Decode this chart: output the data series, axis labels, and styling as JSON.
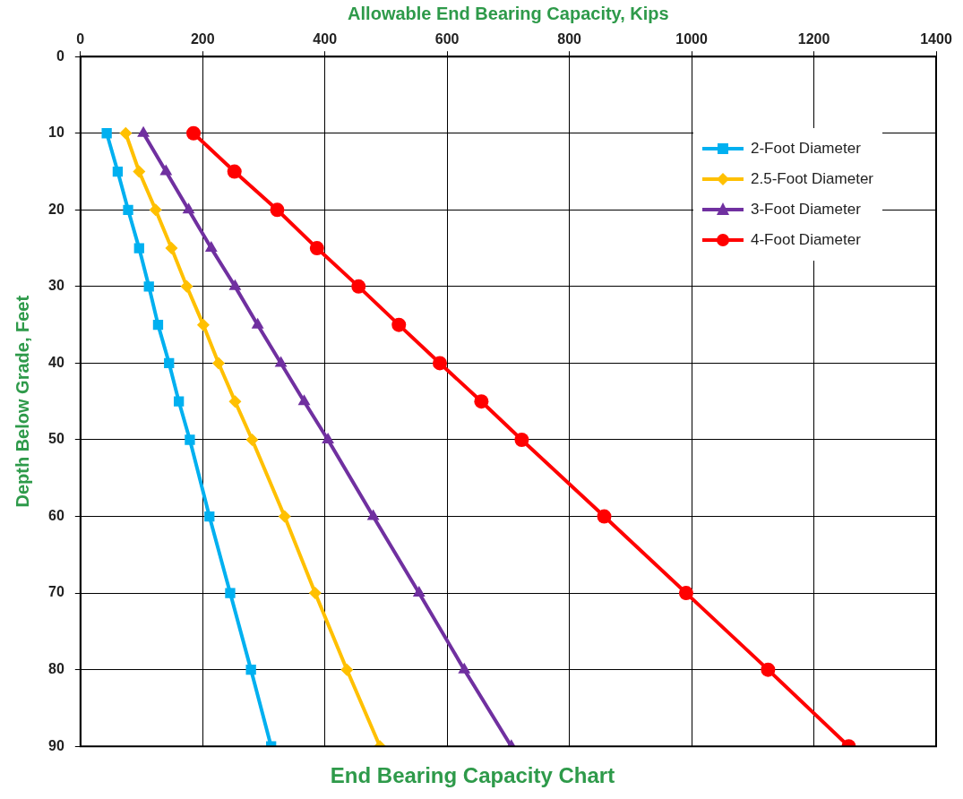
{
  "chart_data": {
    "type": "line",
    "title": "End Bearing Capacity Chart",
    "xlabel": "Allowable End Bearing Capacity, Kips",
    "ylabel": "Depth Below Grade, Feet",
    "xlim": [
      0,
      1400
    ],
    "xticks": [
      0,
      200,
      400,
      600,
      800,
      1000,
      1200,
      1400
    ],
    "ylim": [
      90,
      0
    ],
    "yticks": [
      0,
      10,
      20,
      30,
      40,
      50,
      60,
      70,
      80,
      90
    ],
    "grid": true,
    "legend": "top right",
    "line_style": "solid",
    "series": [
      {
        "name": "2-Foot Diameter",
        "color": "#00b0f0",
        "marker": "square",
        "x": [
          43,
          61,
          78,
          96,
          112,
          127,
          145,
          161,
          179,
          211,
          245,
          279,
          312
        ],
        "values": [
          10,
          15,
          20,
          25,
          30,
          35,
          40,
          45,
          50,
          60,
          70,
          80,
          90
        ]
      },
      {
        "name": "2.5-Foot Diameter",
        "color": "#ffc000",
        "marker": "diamond",
        "x": [
          74,
          96,
          123,
          149,
          174,
          201,
          226,
          253,
          281,
          334,
          384,
          436,
          490
        ],
        "values": [
          10,
          15,
          20,
          25,
          30,
          35,
          40,
          45,
          50,
          60,
          70,
          80,
          90
        ]
      },
      {
        "name": "3-Foot Diameter",
        "color": "#7030a0",
        "marker": "triangle",
        "x": [
          103,
          140,
          177,
          214,
          253,
          290,
          328,
          366,
          405,
          479,
          554,
          628,
          705
        ],
        "values": [
          10,
          15,
          20,
          25,
          30,
          35,
          40,
          45,
          50,
          60,
          70,
          80,
          90
        ]
      },
      {
        "name": "4-Foot Diameter",
        "color": "#ff0000",
        "marker": "circle",
        "x": [
          185,
          252,
          322,
          387,
          455,
          521,
          588,
          656,
          722,
          857,
          991,
          1125,
          1257
        ],
        "values": [
          10,
          15,
          20,
          25,
          30,
          35,
          40,
          45,
          50,
          60,
          70,
          80,
          90
        ]
      }
    ]
  }
}
